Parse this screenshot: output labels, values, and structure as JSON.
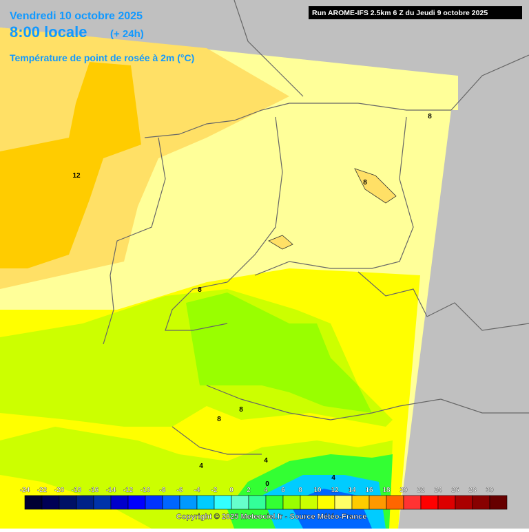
{
  "header": {
    "date": "Vendredi 10 octobre 2025",
    "time": "8:00 locale",
    "lead": "(+ 24h)",
    "parameter": "Température de point de rosée à 2m (°C)",
    "run": "Run AROME-IFS 2.5km 6 Z du Jeudi 9 octobre 2025"
  },
  "map": {
    "contour_labels": [
      12,
      8,
      8,
      8,
      8,
      8,
      4,
      4,
      4,
      0
    ]
  },
  "colorbar": {
    "labels": [
      -24,
      -22,
      -20,
      -18,
      -16,
      -14,
      -12,
      -10,
      -8,
      -6,
      -4,
      -2,
      0,
      2,
      4,
      6,
      8,
      10,
      12,
      14,
      16,
      18,
      20,
      22,
      24,
      26,
      28,
      30
    ],
    "colors": [
      "#000033",
      "#000055",
      "#001166",
      "#002288",
      "#0033aa",
      "#0000cc",
      "#0000ff",
      "#0033ff",
      "#0066ff",
      "#0099ff",
      "#00ccff",
      "#33ffff",
      "#66ffcc",
      "#33ff99",
      "#33ff33",
      "#99ff00",
      "#ccff00",
      "#ffff00",
      "#ffff66",
      "#ffcc00",
      "#ff9900",
      "#ff6600",
      "#ff3333",
      "#ff0000",
      "#dd0000",
      "#aa0000",
      "#880000",
      "#660000"
    ]
  },
  "footer": {
    "copyright": "Copyright © 2025 Meteociel.fr - Source Météo-France"
  }
}
